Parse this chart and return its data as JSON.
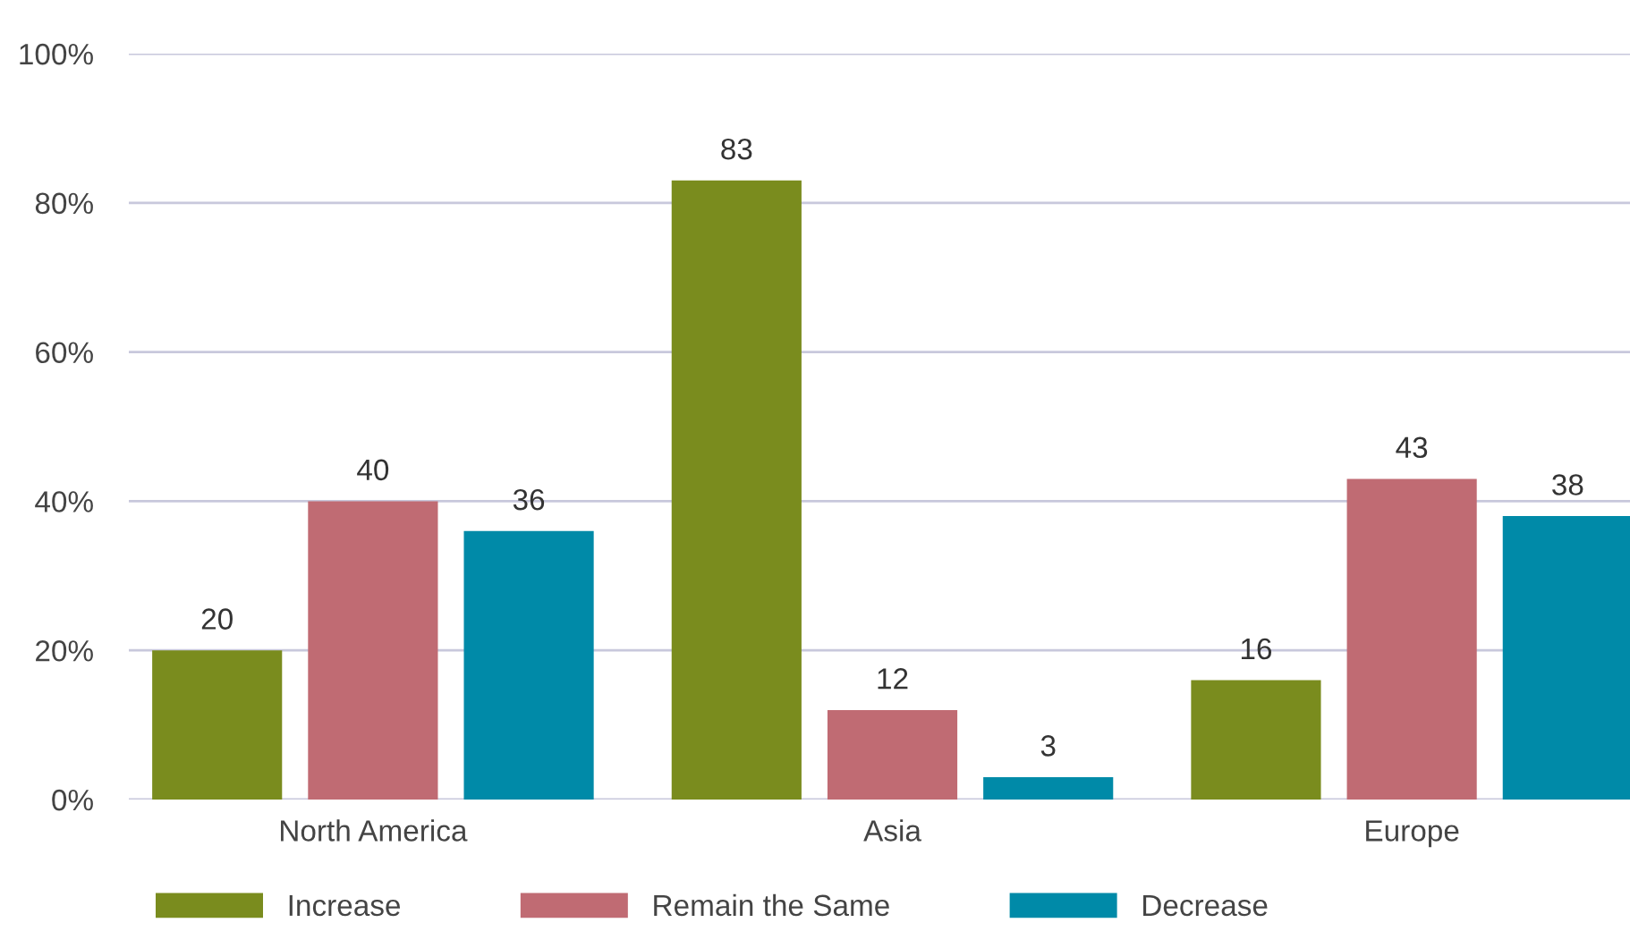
{
  "chart_data": {
    "type": "bar",
    "categories": [
      "North America",
      "Asia",
      "Europe"
    ],
    "series": [
      {
        "name": "Increase",
        "color": "#7a8c1e",
        "values": [
          20,
          83,
          16
        ]
      },
      {
        "name": "Remain the Same",
        "color": "#c06b73",
        "values": [
          40,
          12,
          43
        ]
      },
      {
        "name": "Decrease",
        "color": "#008aa8",
        "values": [
          36,
          3,
          38
        ]
      }
    ],
    "ylim": [
      0,
      100
    ],
    "yticks": [
      {
        "value": 0,
        "label": "0%"
      },
      {
        "value": 20,
        "label": "20%"
      },
      {
        "value": 40,
        "label": "40%"
      },
      {
        "value": 60,
        "label": "60%"
      },
      {
        "value": 80,
        "label": "80%"
      },
      {
        "value": 100,
        "label": "100%"
      }
    ],
    "grid": "y",
    "legend": "bottom",
    "data_labels": true
  }
}
